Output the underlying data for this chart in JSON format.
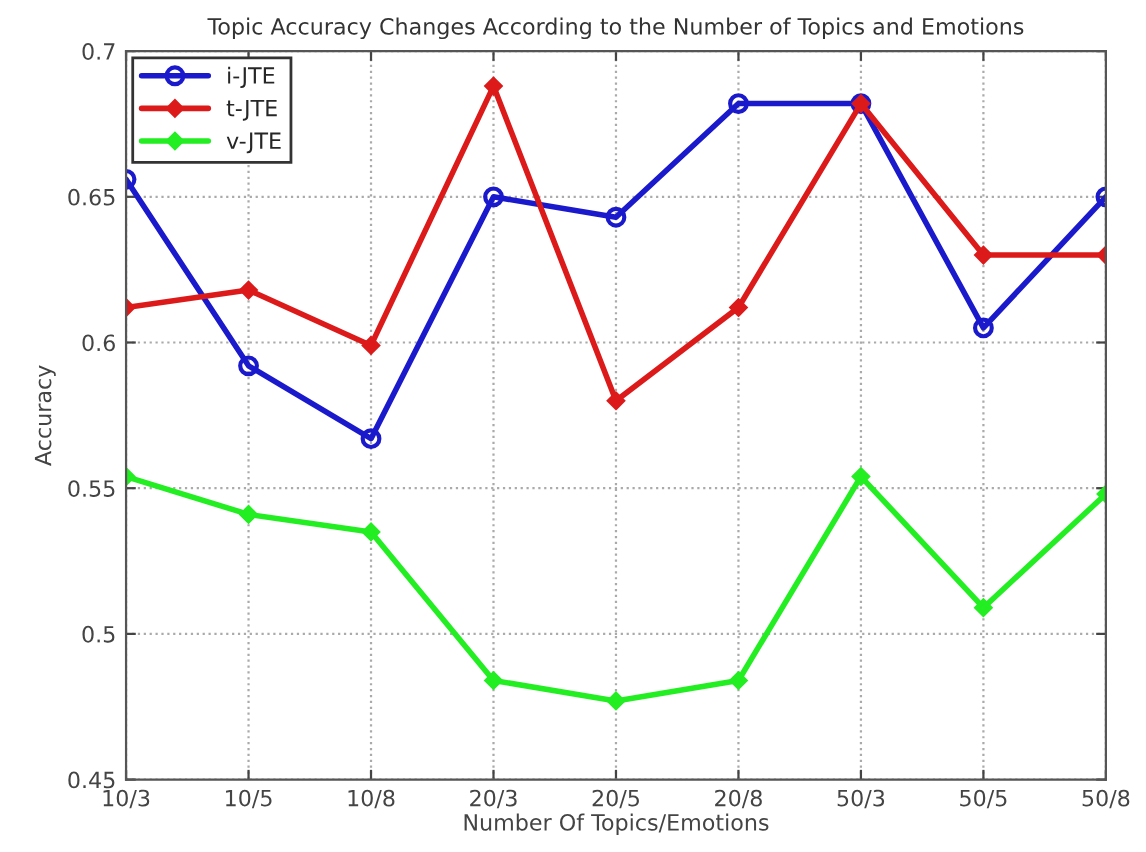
{
  "chart_data": {
    "type": "line",
    "title": "Topic Accuracy Changes According to the Number of Topics and Emotions",
    "xlabel": "Number Of Topics/Emotions",
    "ylabel": "Accuracy",
    "categories": [
      "10/3",
      "10/5",
      "10/8",
      "20/3",
      "20/5",
      "20/8",
      "50/3",
      "50/5",
      "50/8"
    ],
    "series": [
      {
        "name": "i-JTE",
        "color": "#1a1acc",
        "marker": "circle",
        "values": [
          0.656,
          0.592,
          0.567,
          0.65,
          0.643,
          0.682,
          0.682,
          0.605,
          0.65
        ]
      },
      {
        "name": "t-JTE",
        "color": "#dd1a1a",
        "marker": "diamond",
        "values": [
          0.612,
          0.618,
          0.599,
          0.688,
          0.58,
          0.612,
          0.682,
          0.63,
          0.63
        ]
      },
      {
        "name": "v-JTE",
        "color": "#22ee22",
        "marker": "diamond",
        "values": [
          0.554,
          0.541,
          0.535,
          0.484,
          0.477,
          0.484,
          0.554,
          0.509,
          0.548
        ]
      }
    ],
    "ylim": [
      0.45,
      0.7
    ],
    "yticks": [
      0.45,
      0.5,
      0.55,
      0.6,
      0.65,
      0.7
    ],
    "grid": true,
    "legend": "top left",
    "line_style": "solid"
  }
}
